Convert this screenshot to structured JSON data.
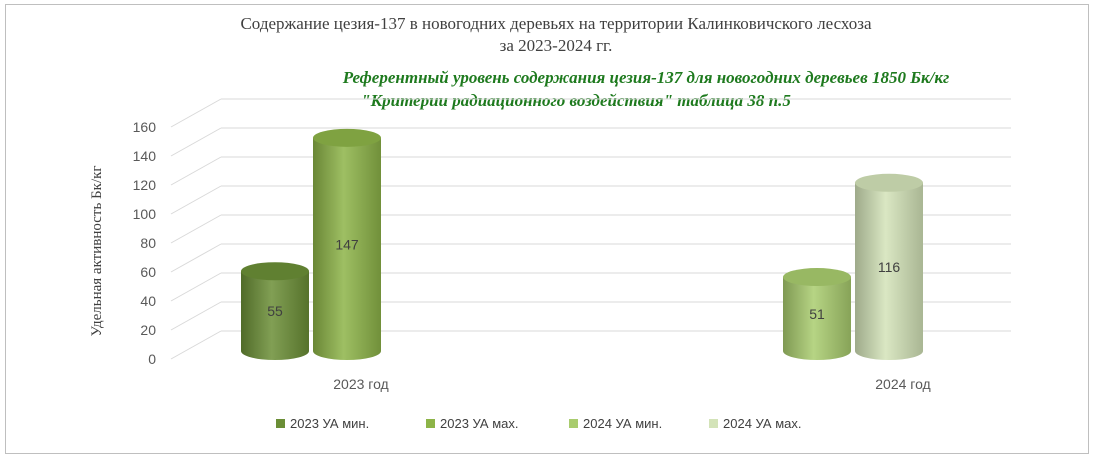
{
  "chart_data": {
    "type": "bar",
    "title_lines": [
      "Содержание цезия-137 в  новогодних деревьях на территории Калинковичского лесхоза",
      "за 2023-2024 гг."
    ],
    "reference_lines": [
      "Референтный уровень содержания цезия-137 для новогодних деревьев 1850 Бк/кг",
      "\"Критерии радиационного воздействия\" таблица 38 п.5"
    ],
    "ylabel": "Удельная активность Бк/кг",
    "ylim": [
      0,
      160
    ],
    "yticks": [
      0,
      20,
      40,
      60,
      80,
      100,
      120,
      140,
      160
    ],
    "grid": true,
    "legend_position": "bottom",
    "categories": [
      "2023 год",
      "2024 год"
    ],
    "series": [
      {
        "name": "2023 УА мин.",
        "color": "#6b8e36",
        "values": [
          55,
          null
        ]
      },
      {
        "name": "2023 УА мах.",
        "color": "#8db448",
        "values": [
          147,
          null
        ]
      },
      {
        "name": "2024 УА мин.",
        "color": "#a9cc6e",
        "values": [
          null,
          51
        ]
      },
      {
        "name": "2024 УА мах.",
        "color": "#d3e3b8",
        "values": [
          null,
          116
        ]
      }
    ]
  }
}
